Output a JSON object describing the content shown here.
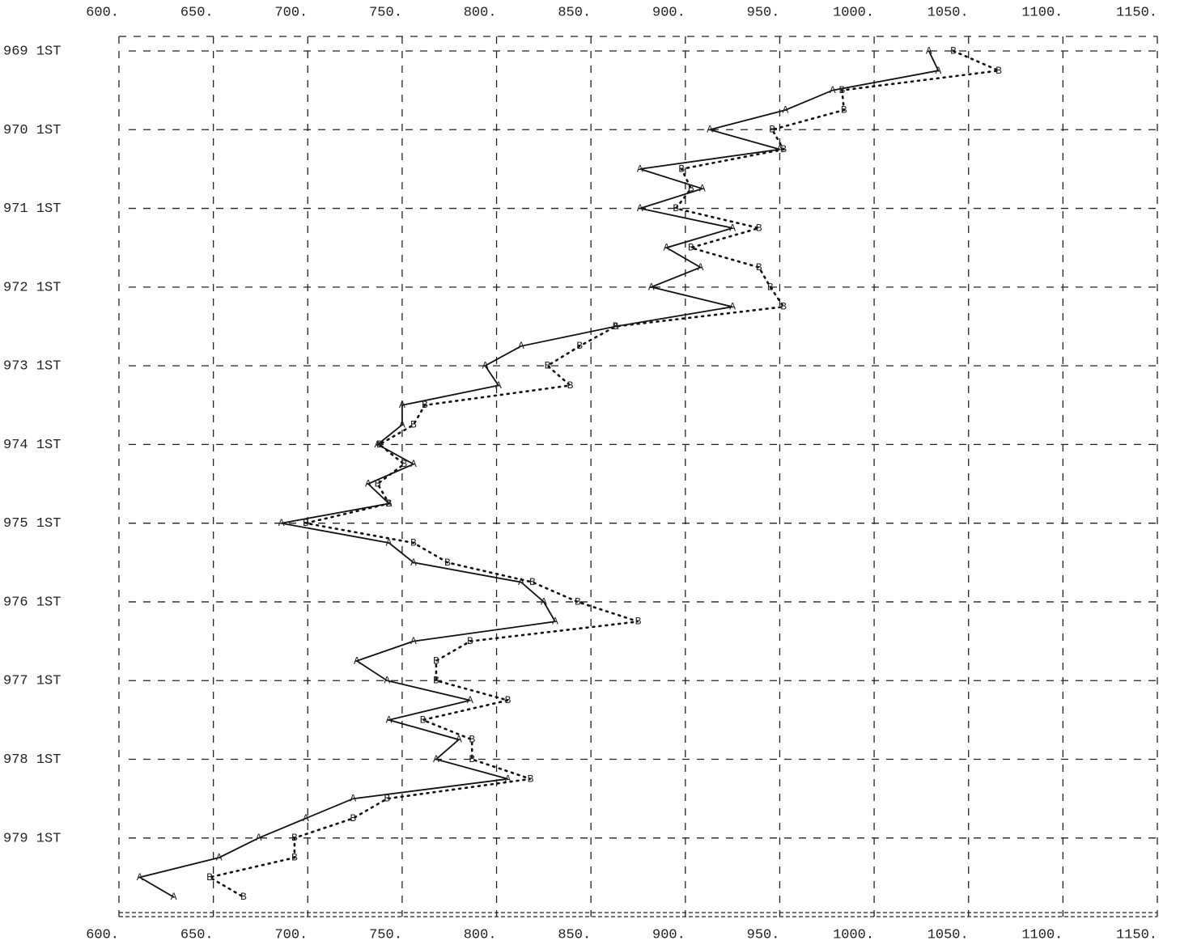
{
  "chart_data": {
    "type": "line",
    "orientation": "vertical",
    "categories": [
      "969 1ST",
      null,
      null,
      null,
      "970 1ST",
      null,
      null,
      null,
      "971 1ST",
      null,
      null,
      null,
      "972 1ST",
      null,
      null,
      null,
      "973 1ST",
      null,
      null,
      null,
      "974 1ST",
      null,
      null,
      null,
      "975 1ST",
      null,
      null,
      null,
      "976 1ST",
      null,
      null,
      null,
      "977 1ST",
      null,
      null,
      null,
      "978 1ST",
      null,
      null,
      null,
      "979 1ST",
      null,
      null,
      null
    ],
    "series": [
      {
        "name": "A",
        "color": "#111111",
        "style": "solid",
        "values": [
          1029,
          1034,
          978,
          953,
          913,
          950,
          876,
          909,
          876,
          925,
          890,
          908,
          882,
          925,
          863,
          813,
          794,
          801,
          750,
          750,
          737,
          756,
          732,
          743,
          686,
          743,
          756,
          813,
          825,
          831,
          756,
          726,
          742,
          786,
          743,
          780,
          768,
          806,
          724,
          699,
          674,
          653,
          611,
          629
        ]
      },
      {
        "name": "B",
        "color": "#111111",
        "style": "dotted",
        "values": [
          1042,
          1066,
          983,
          984,
          946,
          952,
          898,
          903,
          895,
          939,
          903,
          939,
          945,
          952,
          863,
          844,
          827,
          839,
          762,
          756,
          738,
          751,
          737,
          743,
          699,
          756,
          774,
          819,
          843,
          875,
          786,
          768,
          768,
          806,
          761,
          787,
          787,
          818,
          742,
          724,
          693,
          693,
          648,
          666
        ]
      }
    ],
    "xlim": [
      600,
      1150
    ],
    "xticks": [
      {
        "value": 600,
        "label": "600."
      },
      {
        "value": 650,
        "label": "650."
      },
      {
        "value": 700,
        "label": "700."
      },
      {
        "value": 750,
        "label": "750."
      },
      {
        "value": 800,
        "label": "800."
      },
      {
        "value": 850,
        "label": "850."
      },
      {
        "value": 900,
        "label": "900."
      },
      {
        "value": 950,
        "label": "950."
      },
      {
        "value": 1000,
        "label": "1000."
      },
      {
        "value": 1050,
        "label": "1050."
      },
      {
        "value": 1100,
        "label": "1100."
      },
      {
        "value": 1150,
        "label": "1150."
      }
    ],
    "grid": true
  }
}
